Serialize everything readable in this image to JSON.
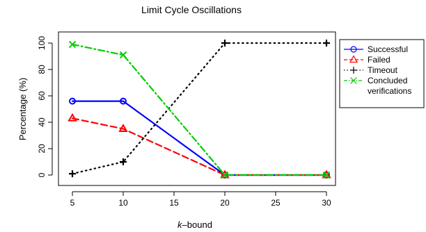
{
  "chart_data": {
    "type": "line",
    "title": "Limit Cycle Oscillations",
    "xlabel_italic": "k",
    "xlabel_rest": "–bound",
    "ylabel": "Percentage (%)",
    "x": [
      5,
      10,
      20,
      30
    ],
    "x_ticks": [
      "5",
      "10",
      "15",
      "20",
      "25",
      "30"
    ],
    "x_tick_values": [
      5,
      10,
      15,
      20,
      25,
      30
    ],
    "y_ticks": [
      "0",
      "20",
      "40",
      "60",
      "80",
      "100"
    ],
    "y_tick_values": [
      0,
      20,
      40,
      60,
      80,
      100
    ],
    "xlim": [
      5,
      30
    ],
    "ylim": [
      0,
      100
    ],
    "grid": false,
    "legend_position": "top-right, outside plot",
    "series": [
      {
        "name": "Successful",
        "values": [
          56,
          56,
          0,
          0
        ],
        "color": "#0000ff",
        "dash": "solid",
        "marker": "circle"
      },
      {
        "name": "Failed",
        "values": [
          43,
          35,
          0,
          0
        ],
        "color": "#ff0000",
        "dash": "dashed",
        "marker": "triangle"
      },
      {
        "name": "Timeout",
        "values": [
          1,
          10,
          100,
          100
        ],
        "color": "#000000",
        "dash": "dotted",
        "marker": "plus"
      },
      {
        "name": "Concluded verifications",
        "name_lines": [
          "Concluded",
          "verifications"
        ],
        "values": [
          99,
          91,
          0,
          0
        ],
        "color": "#00cc00",
        "dash": "dashdot",
        "marker": "cross"
      }
    ]
  }
}
